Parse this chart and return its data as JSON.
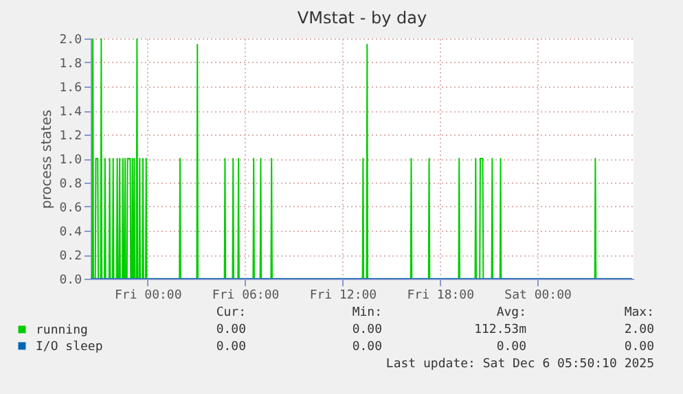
{
  "chart_data": {
    "type": "line",
    "title": "VMstat - by day",
    "ylabel": "process states",
    "xlim": [
      "2025-12-04T20:30",
      "2025-12-06T05:55"
    ],
    "ylim": [
      0,
      2.0
    ],
    "xticks": [
      {
        "value": "2025-12-05T00:00",
        "label": "Fri 00:00"
      },
      {
        "value": "2025-12-05T06:00",
        "label": "Fri 06:00"
      },
      {
        "value": "2025-12-05T12:00",
        "label": "Fri 12:00"
      },
      {
        "value": "2025-12-05T18:00",
        "label": "Fri 18:00"
      },
      {
        "value": "2025-12-06T00:00",
        "label": "Sat 00:00"
      }
    ],
    "yticks": [
      {
        "value": 0,
        "label": "0.0"
      },
      {
        "value": 0.2,
        "label": "0.2"
      },
      {
        "value": 0.4,
        "label": "0.4"
      },
      {
        "value": 0.6,
        "label": "0.6"
      },
      {
        "value": 0.8,
        "label": "0.8"
      },
      {
        "value": 1.0,
        "label": "1.0"
      },
      {
        "value": 1.2,
        "label": "1.2"
      },
      {
        "value": 1.4,
        "label": "1.4"
      },
      {
        "value": 1.6,
        "label": "1.6"
      },
      {
        "value": 1.8,
        "label": "1.8"
      },
      {
        "value": 2.0,
        "label": "2.0"
      }
    ],
    "grid": true,
    "legend": "bottom",
    "series": [
      {
        "name": "running",
        "color": "#00cc00",
        "x": [
          "2025-12-04T20:30",
          "2025-12-04T20:36",
          "2025-12-04T20:38",
          "2025-12-04T20:40",
          "2025-12-04T20:47",
          "2025-12-04T20:49",
          "2025-12-04T20:56",
          "2025-12-04T20:58",
          "2025-12-04T21:07",
          "2025-12-04T21:09",
          "2025-12-04T21:11",
          "2025-12-04T21:21",
          "2025-12-04T21:23",
          "2025-12-04T21:25",
          "2025-12-04T21:38",
          "2025-12-04T21:40",
          "2025-12-04T21:42",
          "2025-12-04T21:51",
          "2025-12-04T21:53",
          "2025-12-04T21:55",
          "2025-12-04T22:06",
          "2025-12-04T22:08",
          "2025-12-04T22:10",
          "2025-12-04T22:15",
          "2025-12-04T22:17",
          "2025-12-04T22:19",
          "2025-12-04T22:27",
          "2025-12-04T22:29",
          "2025-12-04T22:31",
          "2025-12-04T22:35",
          "2025-12-04T22:37",
          "2025-12-04T22:39",
          "2025-12-04T22:44",
          "2025-12-04T22:46",
          "2025-12-04T22:56",
          "2025-12-04T22:58",
          "2025-12-04T23:02",
          "2025-12-04T23:04",
          "2025-12-04T23:06",
          "2025-12-04T23:09",
          "2025-12-04T23:11",
          "2025-12-04T23:13",
          "2025-12-04T23:19",
          "2025-12-04T23:21",
          "2025-12-04T23:23",
          "2025-12-04T23:29",
          "2025-12-04T23:31",
          "2025-12-04T23:33",
          "2025-12-04T23:41",
          "2025-12-04T23:43",
          "2025-12-04T23:45",
          "2025-12-04T23:53",
          "2025-12-04T23:55",
          "2025-12-04T23:57",
          "2025-12-05T01:58",
          "2025-12-05T02:00",
          "2025-12-05T02:02",
          "2025-12-05T03:02",
          "2025-12-05T03:04",
          "2025-12-05T03:06",
          "2025-12-05T04:44",
          "2025-12-05T04:46",
          "2025-12-05T04:48",
          "2025-12-05T05:14",
          "2025-12-05T05:16",
          "2025-12-05T05:18",
          "2025-12-05T05:34",
          "2025-12-05T05:36",
          "2025-12-05T05:38",
          "2025-12-05T06:30",
          "2025-12-05T06:32",
          "2025-12-05T06:34",
          "2025-12-05T06:56",
          "2025-12-05T06:58",
          "2025-12-05T07:00",
          "2025-12-05T07:36",
          "2025-12-05T07:38",
          "2025-12-05T07:40",
          "2025-12-05T13:14",
          "2025-12-05T13:16",
          "2025-12-05T13:18",
          "2025-12-05T13:29",
          "2025-12-05T13:31",
          "2025-12-05T13:33",
          "2025-12-05T16:12",
          "2025-12-05T16:14",
          "2025-12-05T16:16",
          "2025-12-05T17:18",
          "2025-12-05T17:20",
          "2025-12-05T17:22",
          "2025-12-05T19:09",
          "2025-12-05T19:11",
          "2025-12-05T19:13",
          "2025-12-05T20:10",
          "2025-12-05T20:12",
          "2025-12-05T20:14",
          "2025-12-05T20:27",
          "2025-12-05T20:29",
          "2025-12-05T20:38",
          "2025-12-05T20:40",
          "2025-12-05T21:11",
          "2025-12-05T21:13",
          "2025-12-05T21:15",
          "2025-12-05T21:42",
          "2025-12-05T21:44",
          "2025-12-05T21:46",
          "2025-12-06T03:32",
          "2025-12-06T03:34",
          "2025-12-06T03:36",
          "2025-12-06T05:50"
        ],
        "values": [
          0,
          0,
          2.0,
          0,
          0,
          1.0,
          1.0,
          0,
          0,
          2.0,
          0,
          0,
          1.0,
          0,
          0,
          1.0,
          0,
          0,
          1.0,
          0,
          0,
          1.0,
          0,
          0,
          1.0,
          0,
          0,
          1.0,
          0,
          0,
          1.0,
          0,
          0,
          1.0,
          1.0,
          0,
          0,
          1.0,
          0,
          0,
          1.0,
          0,
          0,
          2.0,
          0,
          0,
          1.0,
          0,
          0,
          1.0,
          0,
          0,
          1.0,
          0,
          0,
          1.0,
          0,
          0,
          1.95,
          0,
          0,
          1.0,
          0,
          0,
          1.0,
          0,
          0,
          1.0,
          0,
          0,
          1.0,
          0,
          0,
          1.0,
          0,
          0,
          1.0,
          0,
          0,
          1.0,
          0,
          0,
          1.95,
          0,
          0,
          1.0,
          0,
          0,
          1.0,
          0,
          0,
          1.0,
          0,
          0,
          1.0,
          0,
          0,
          1.0,
          1.0,
          0,
          0,
          1.0,
          0,
          0,
          1.0,
          0,
          0,
          1.0,
          0,
          0
        ]
      },
      {
        "name": "I/O sleep",
        "color": "#0066b3",
        "x": [
          "2025-12-04T20:30",
          "2025-12-06T05:50"
        ],
        "values": [
          0,
          0
        ]
      }
    ],
    "annotations": [
      "Cur:",
      "Min:",
      "Avg:",
      "Max:",
      "0.00",
      "0.00",
      "112.53m",
      "2.00",
      "0.00",
      "0.00",
      "0.00",
      "0.00",
      "Last update: Sat Dec  6 05:50:10 2025"
    ]
  }
}
